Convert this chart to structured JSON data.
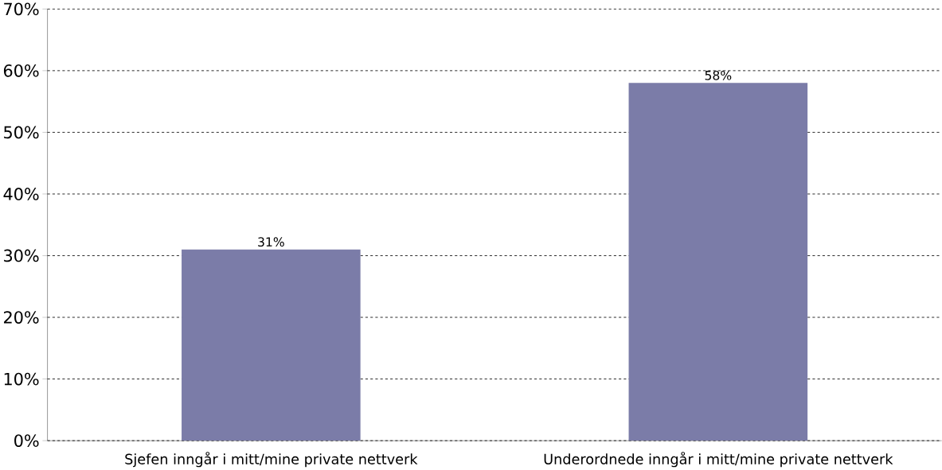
{
  "chart_data": {
    "type": "bar",
    "categories": [
      "Sjefen inngår i mitt/mine private nettverk",
      "Underordnede inngår i mitt/mine private nettverk"
    ],
    "values": [
      31,
      58
    ],
    "value_labels": [
      "31%",
      "58%"
    ],
    "color": "#7b7ca8",
    "ylim": [
      0,
      70
    ],
    "yticks": [
      {
        "value": 0,
        "label": "0%"
      },
      {
        "value": 10,
        "label": "10%"
      },
      {
        "value": 20,
        "label": "20%"
      },
      {
        "value": 30,
        "label": "30%"
      },
      {
        "value": 40,
        "label": "40%"
      },
      {
        "value": 50,
        "label": "50%"
      },
      {
        "value": 60,
        "label": "60%"
      },
      {
        "value": 70,
        "label": "70%"
      }
    ],
    "grid": "y"
  }
}
